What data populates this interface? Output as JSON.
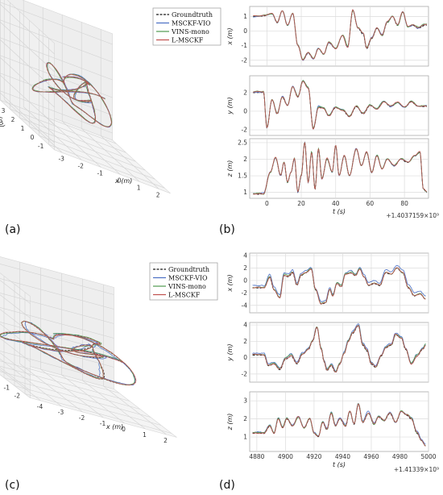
{
  "colors": {
    "groundtruth": "#1a1a1a",
    "msckf_vio": "#4a6fc4",
    "vins_mono": "#4f9a4f",
    "l_msckf": "#c0504d",
    "grid": "#dcdcdc",
    "pane": "#f2f2f2"
  },
  "panel_labels": [
    "(a)",
    "(b)",
    "(c)",
    "(d)"
  ],
  "chart_data": [
    {
      "id": "a",
      "type": "line",
      "projection": "3d",
      "xlabel": "x (m)",
      "ylabel": "y (m)",
      "zlabel": "z (m)",
      "x_ticks": [
        "-3",
        "-2",
        "-1",
        "0",
        "1",
        "2"
      ],
      "y_ticks": [
        "4",
        "3",
        "2",
        "1",
        "0",
        "-1"
      ],
      "z_ticks": [
        "4",
        "3",
        "2",
        "1",
        "0",
        "-1"
      ],
      "legend": {
        "position": "top-right",
        "entries": [
          "Groundtruth",
          "MSCKF-VIO",
          "VINS-mono",
          "L-MSCKF"
        ]
      },
      "grid": true
    },
    {
      "id": "b",
      "type": "line",
      "xlabel": "t (s)",
      "x_offset": "+1.4037159×10⁹",
      "x_ticks": [
        0,
        20,
        40,
        60,
        80
      ],
      "xlim": [
        -10,
        94
      ],
      "grid": true,
      "subplots": [
        {
          "ylabel": "x (m)",
          "yticks": [
            1,
            0,
            -1,
            -2
          ],
          "ylim": [
            -2.4,
            1.7
          ]
        },
        {
          "ylabel": "y (m)",
          "yticks": [
            2,
            0,
            -2
          ],
          "ylim": [
            -2.6,
            3.8
          ]
        },
        {
          "ylabel": "z (m)",
          "yticks": [
            2.5,
            2.0,
            1.5,
            1.0
          ],
          "ylim": [
            0.82,
            2.62
          ]
        }
      ]
    },
    {
      "id": "c",
      "type": "line",
      "projection": "3d",
      "xlabel": "x (m)",
      "ylabel": "y (m)",
      "zlabel": "z (m)",
      "x_ticks": [
        "-4",
        "-3",
        "-2",
        "-1",
        "0",
        "1",
        "2"
      ],
      "y_ticks": [
        "3",
        "2",
        "1",
        "0",
        "-1",
        "-2"
      ],
      "z_ticks": [
        "5",
        "4",
        "3",
        "2",
        "1",
        "0",
        "-1"
      ],
      "legend": {
        "position": "top-right",
        "entries": [
          "Groundtruth",
          "MSCKF-VIO",
          "VINS-mono",
          "L-MSCKF"
        ]
      },
      "grid": true
    },
    {
      "id": "d",
      "type": "line",
      "xlabel": "t (s)",
      "x_offset": "+1.41339×10⁹",
      "x_ticks": [
        4880,
        4900,
        4920,
        4940,
        4960,
        4980,
        5000
      ],
      "xlim": [
        4875,
        5000
      ],
      "grid": true,
      "subplots": [
        {
          "ylabel": "x (m)",
          "yticks": [
            4,
            2,
            0,
            -2,
            -4
          ],
          "ylim": [
            -5.2,
            4.4
          ]
        },
        {
          "ylabel": "y (m)",
          "yticks": [
            4,
            2,
            0,
            -2
          ],
          "ylim": [
            -3.0,
            4.3
          ]
        },
        {
          "ylabel": "z (m)",
          "yticks": [
            3,
            2,
            1
          ],
          "ylim": [
            0.2,
            3.5
          ]
        }
      ]
    }
  ]
}
